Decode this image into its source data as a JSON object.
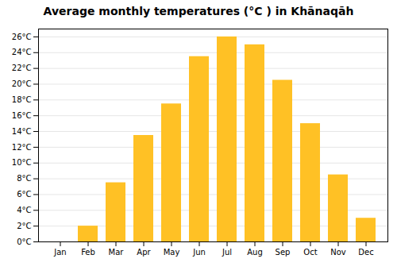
{
  "chart_data": {
    "type": "bar",
    "title": "Average monthly temperatures (°C ) in Khānaqāh",
    "categories": [
      "Jan",
      "Feb",
      "Mar",
      "Apr",
      "May",
      "Jun",
      "Jul",
      "Aug",
      "Sep",
      "Oct",
      "Nov",
      "Dec"
    ],
    "values": [
      0,
      2,
      7.5,
      13.5,
      17.5,
      23.5,
      26,
      25,
      20.5,
      15,
      8.5,
      3
    ],
    "color": "#FFC125",
    "ylim": [
      0,
      27
    ],
    "yticks": [
      {
        "value": 0,
        "label": "0°C"
      },
      {
        "value": 2,
        "label": "2°C"
      },
      {
        "value": 4,
        "label": "4°C"
      },
      {
        "value": 6,
        "label": "6°C"
      },
      {
        "value": 8,
        "label": "8°C"
      },
      {
        "value": 10,
        "label": "10°C"
      },
      {
        "value": 12,
        "label": "12°C"
      },
      {
        "value": 14,
        "label": "14°C"
      },
      {
        "value": 16,
        "label": "16°C"
      },
      {
        "value": 18,
        "label": "18°C"
      },
      {
        "value": 20,
        "label": "20°C"
      },
      {
        "value": 22,
        "label": "22°C"
      },
      {
        "value": 24,
        "label": "24°C"
      },
      {
        "value": 26,
        "label": "26°C"
      }
    ],
    "grid": true
  }
}
